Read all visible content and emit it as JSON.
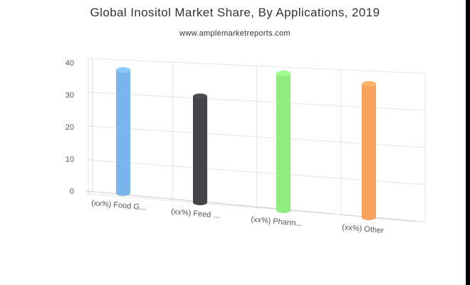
{
  "header": {
    "title": "Global Inositol Market Share, By Applications, 2019",
    "subtitle": "www.amplemarketreports.com"
  },
  "chart_data": {
    "type": "bar",
    "categories": [
      "(xx%) Food G...",
      "(xx%) Feed ...",
      "(xx%) Pharm...",
      "(xx%) Other"
    ],
    "values": [
      36,
      31,
      40,
      39
    ],
    "colors": [
      "#7cb5ec",
      "#434348",
      "#90ed7d",
      "#f7a35c"
    ],
    "ylim": [
      0,
      40
    ],
    "yticks": [
      "0",
      "10",
      "20",
      "30",
      "40"
    ],
    "grid": true,
    "legend": "none",
    "style": "3d-cylinder"
  }
}
